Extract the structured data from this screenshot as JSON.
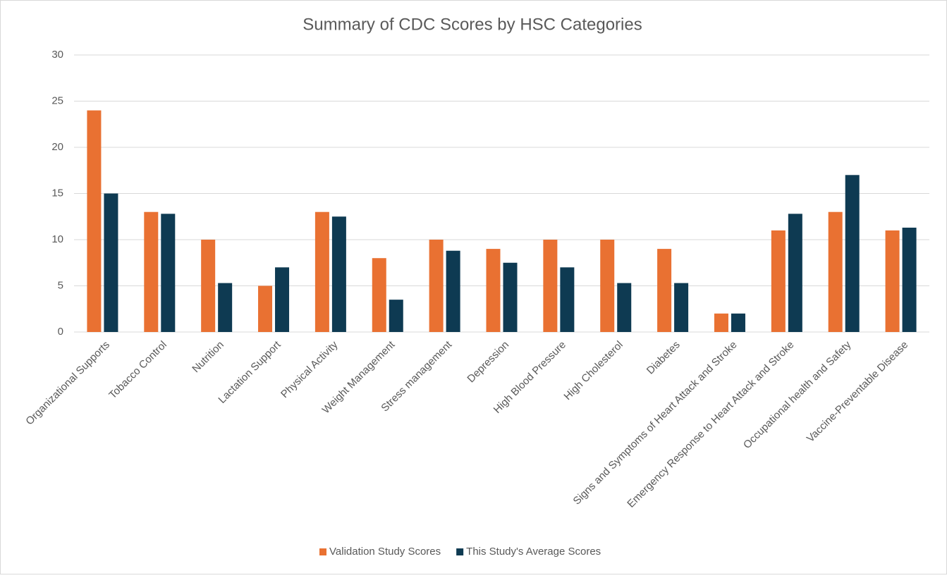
{
  "chart_data": {
    "type": "bar",
    "title": "Summary of CDC Scores by HSC Categories",
    "categories": [
      "Organizational Supports",
      "Tobacco Control",
      "Nutrition",
      "Lactation Support",
      "Physical Activity",
      "Weight Management",
      "Stress management",
      "Depression",
      "High Blood Pressure",
      "High Cholesterol",
      "Diabetes",
      "Signs and Symptoms of Heart Attack and Stroke",
      "Emergency Response to Heart Attack and Stroke",
      "Occupational health and Safety",
      "Vaccine-Preventable Disease"
    ],
    "series": [
      {
        "name": "Validation Study Scores",
        "color": "#e97132",
        "values": [
          24,
          13,
          10,
          5,
          13,
          8,
          10,
          9,
          10,
          10,
          9,
          2,
          11,
          13,
          11
        ]
      },
      {
        "name": "This Study's Average Scores",
        "color": "#0e3a52",
        "values": [
          15,
          12.8,
          5.3,
          7,
          12.5,
          3.5,
          8.8,
          7.5,
          7,
          5.3,
          5.3,
          2,
          12.8,
          17,
          11.3
        ]
      }
    ],
    "ylim": [
      0,
      30
    ],
    "yticks": [
      0,
      5,
      10,
      15,
      20,
      25,
      30
    ],
    "grid": true,
    "legend": "bottom"
  }
}
